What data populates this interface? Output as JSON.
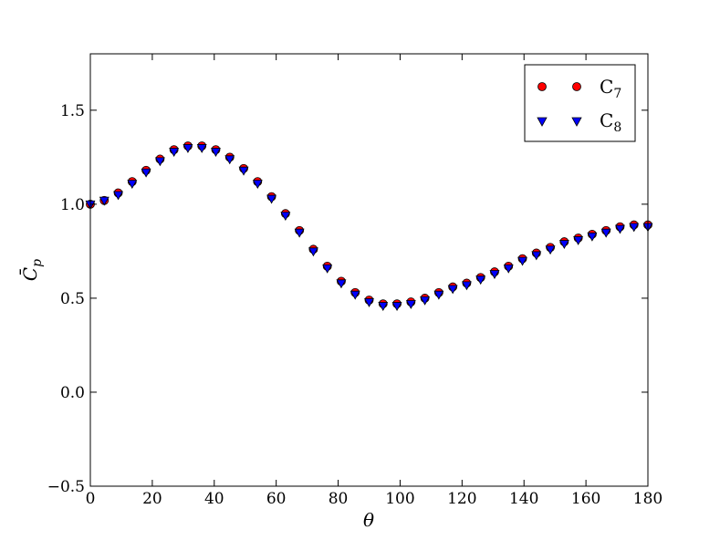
{
  "chart_data": {
    "type": "scatter",
    "title": "",
    "xlabel": "θ",
    "ylabel": "C̄",
    "ylabel_sub": "p",
    "xlim": [
      0,
      180
    ],
    "ylim": [
      -0.5,
      1.8
    ],
    "xticks": [
      0,
      20,
      40,
      60,
      80,
      100,
      120,
      140,
      160,
      180
    ],
    "xtick_labels": [
      "0",
      "20",
      "40",
      "60",
      "80",
      "100",
      "120",
      "140",
      "160",
      "180"
    ],
    "yticks": [
      -0.5,
      0.0,
      0.5,
      1.0,
      1.5
    ],
    "ytick_labels": [
      "−0.5",
      "0.0",
      "0.5",
      "1.0",
      "1.5"
    ],
    "grid": false,
    "legend_position": "top-right",
    "x": [
      0,
      4.5,
      9,
      13.5,
      18,
      22.5,
      27,
      31.5,
      36,
      40.5,
      45,
      49.5,
      54,
      58.5,
      63,
      67.5,
      72,
      76.5,
      81,
      85.5,
      90,
      94.5,
      99,
      103.5,
      108,
      112.5,
      117,
      121.5,
      126,
      130.5,
      135,
      139.5,
      144,
      148.5,
      153,
      157.5,
      162,
      166.5,
      171,
      175.5,
      180
    ],
    "series": [
      {
        "name": "C",
        "name_sub": "7",
        "marker": "circle",
        "color": "#ff0000",
        "values": [
          1.0,
          1.02,
          1.06,
          1.12,
          1.18,
          1.24,
          1.29,
          1.31,
          1.31,
          1.29,
          1.25,
          1.19,
          1.12,
          1.04,
          0.95,
          0.86,
          0.76,
          0.67,
          0.59,
          0.53,
          0.49,
          0.47,
          0.47,
          0.48,
          0.5,
          0.53,
          0.56,
          0.58,
          0.61,
          0.64,
          0.67,
          0.71,
          0.74,
          0.77,
          0.8,
          0.82,
          0.84,
          0.86,
          0.88,
          0.89,
          0.89
        ]
      },
      {
        "name": "C",
        "name_sub": "8",
        "marker": "triangle-down",
        "color": "#0000ff",
        "values": [
          1.0,
          1.02,
          1.05,
          1.11,
          1.17,
          1.23,
          1.28,
          1.3,
          1.3,
          1.28,
          1.24,
          1.18,
          1.11,
          1.03,
          0.94,
          0.85,
          0.75,
          0.66,
          0.58,
          0.52,
          0.48,
          0.46,
          0.46,
          0.47,
          0.49,
          0.52,
          0.55,
          0.57,
          0.6,
          0.63,
          0.66,
          0.7,
          0.73,
          0.76,
          0.79,
          0.81,
          0.83,
          0.85,
          0.87,
          0.88,
          0.88
        ]
      }
    ]
  }
}
